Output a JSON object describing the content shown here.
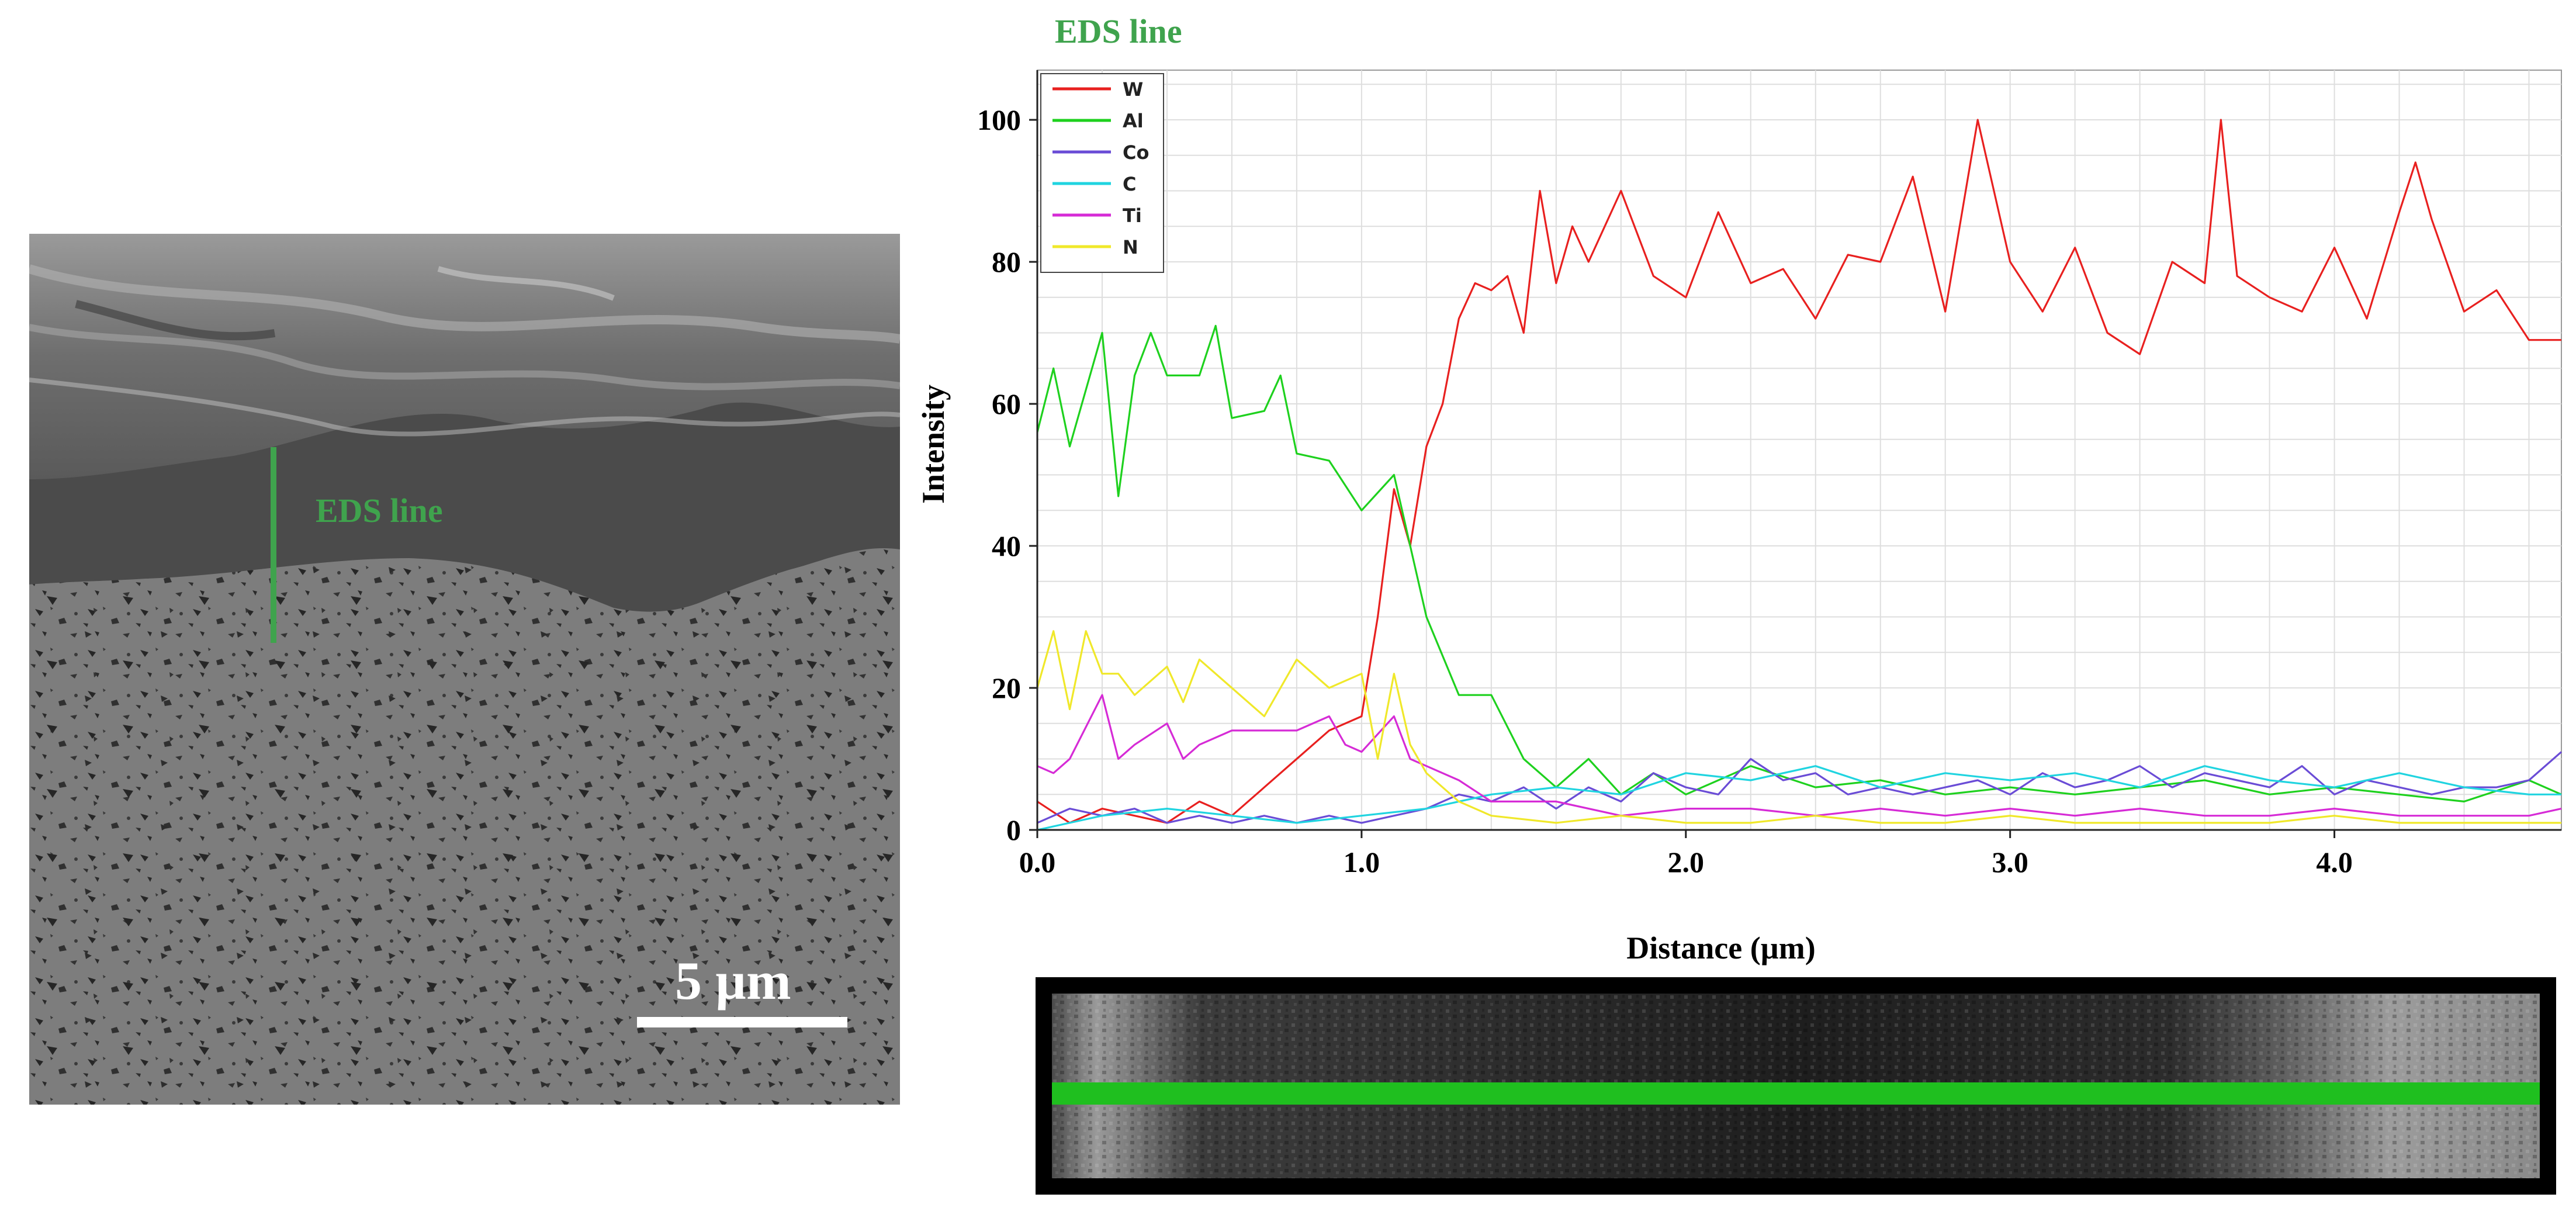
{
  "sem": {
    "eds_label": "EDS line",
    "scale_label": "5 µm",
    "colors": {
      "line": "#3fa34d",
      "coating": "#4a4a4a",
      "substrate": "#7a7a7a",
      "top": "#8e8e8e"
    }
  },
  "chart_title": "EDS line",
  "chart_data": {
    "type": "line",
    "xlabel": "Distance (µm)",
    "ylabel": "Intensity",
    "xlim": [
      0,
      4.7
    ],
    "ylim": [
      0,
      107
    ],
    "xticks": [
      "0.0",
      "1.0",
      "2.0",
      "3.0",
      "4.0"
    ],
    "xtick_values": [
      0,
      1,
      2,
      3,
      4
    ],
    "yticks": [
      "0",
      "20",
      "40",
      "60",
      "80",
      "100"
    ],
    "ytick_values": [
      0,
      20,
      40,
      60,
      80,
      100
    ],
    "grid": true,
    "legend_position": "top-left",
    "series": [
      {
        "name": "W",
        "color": "#e8201f",
        "x": [
          0,
          0.1,
          0.2,
          0.3,
          0.4,
          0.5,
          0.6,
          0.7,
          0.8,
          0.9,
          1.0,
          1.05,
          1.1,
          1.15,
          1.2,
          1.25,
          1.3,
          1.35,
          1.4,
          1.45,
          1.5,
          1.55,
          1.6,
          1.65,
          1.7,
          1.8,
          1.9,
          2.0,
          2.1,
          2.2,
          2.3,
          2.4,
          2.5,
          2.6,
          2.7,
          2.8,
          2.9,
          3.0,
          3.1,
          3.2,
          3.3,
          3.4,
          3.5,
          3.6,
          3.65,
          3.7,
          3.8,
          3.9,
          4.0,
          4.1,
          4.2,
          4.25,
          4.3,
          4.4,
          4.5,
          4.6,
          4.7
        ],
        "y": [
          4,
          1,
          3,
          2,
          1,
          4,
          2,
          6,
          10,
          14,
          16,
          30,
          48,
          40,
          54,
          60,
          72,
          77,
          76,
          78,
          70,
          90,
          77,
          85,
          80,
          90,
          78,
          75,
          87,
          77,
          79,
          72,
          81,
          80,
          92,
          73,
          100,
          80,
          73,
          82,
          70,
          67,
          80,
          77,
          100,
          78,
          75,
          73,
          82,
          72,
          87,
          94,
          86,
          73,
          76,
          69,
          69
        ]
      },
      {
        "name": "Al",
        "color": "#1ed11e",
        "x": [
          0,
          0.05,
          0.1,
          0.2,
          0.25,
          0.3,
          0.35,
          0.4,
          0.5,
          0.55,
          0.6,
          0.7,
          0.75,
          0.8,
          0.9,
          1.0,
          1.1,
          1.15,
          1.2,
          1.3,
          1.4,
          1.5,
          1.6,
          1.7,
          1.8,
          1.9,
          2.0,
          2.2,
          2.4,
          2.6,
          2.8,
          3.0,
          3.2,
          3.4,
          3.6,
          3.8,
          4.0,
          4.2,
          4.4,
          4.6,
          4.7
        ],
        "y": [
          56,
          65,
          54,
          70,
          47,
          64,
          70,
          64,
          64,
          71,
          58,
          59,
          64,
          53,
          52,
          45,
          50,
          40,
          30,
          19,
          19,
          10,
          6,
          10,
          5,
          8,
          5,
          9,
          6,
          7,
          5,
          6,
          5,
          6,
          7,
          5,
          6,
          5,
          4,
          7,
          5
        ]
      },
      {
        "name": "Co",
        "color": "#6a4cd6",
        "x": [
          0,
          0.1,
          0.2,
          0.3,
          0.4,
          0.5,
          0.6,
          0.7,
          0.8,
          0.9,
          1.0,
          1.1,
          1.2,
          1.3,
          1.4,
          1.5,
          1.6,
          1.7,
          1.8,
          1.9,
          2.0,
          2.1,
          2.2,
          2.3,
          2.4,
          2.5,
          2.6,
          2.7,
          2.8,
          2.9,
          3.0,
          3.1,
          3.2,
          3.3,
          3.4,
          3.5,
          3.6,
          3.7,
          3.8,
          3.9,
          4.0,
          4.1,
          4.2,
          4.3,
          4.4,
          4.5,
          4.6,
          4.7
        ],
        "y": [
          1,
          3,
          2,
          3,
          1,
          2,
          1,
          2,
          1,
          2,
          1,
          2,
          3,
          5,
          4,
          6,
          3,
          6,
          4,
          8,
          6,
          5,
          10,
          7,
          8,
          5,
          6,
          5,
          6,
          7,
          5,
          8,
          6,
          7,
          9,
          6,
          8,
          7,
          6,
          9,
          5,
          7,
          6,
          5,
          6,
          6,
          7,
          11
        ]
      },
      {
        "name": "C",
        "color": "#20d4e0",
        "x": [
          0,
          0.2,
          0.4,
          0.6,
          0.8,
          1.0,
          1.2,
          1.4,
          1.6,
          1.8,
          2.0,
          2.2,
          2.4,
          2.6,
          2.8,
          3.0,
          3.2,
          3.4,
          3.6,
          3.8,
          4.0,
          4.2,
          4.4,
          4.6,
          4.7
        ],
        "y": [
          0,
          2,
          3,
          2,
          1,
          2,
          3,
          5,
          6,
          5,
          8,
          7,
          9,
          6,
          8,
          7,
          8,
          6,
          9,
          7,
          6,
          8,
          6,
          5,
          5
        ]
      },
      {
        "name": "Ti",
        "color": "#d62bd6",
        "x": [
          0,
          0.05,
          0.1,
          0.2,
          0.25,
          0.3,
          0.4,
          0.45,
          0.5,
          0.6,
          0.7,
          0.8,
          0.9,
          0.95,
          1.0,
          1.1,
          1.15,
          1.2,
          1.3,
          1.4,
          1.6,
          1.8,
          2.0,
          2.2,
          2.4,
          2.6,
          2.8,
          3.0,
          3.2,
          3.4,
          3.6,
          3.8,
          4.0,
          4.2,
          4.4,
          4.6,
          4.7
        ],
        "y": [
          9,
          8,
          10,
          19,
          10,
          12,
          15,
          10,
          12,
          14,
          14,
          14,
          16,
          12,
          11,
          16,
          10,
          9,
          7,
          4,
          4,
          2,
          3,
          3,
          2,
          3,
          2,
          3,
          2,
          3,
          2,
          2,
          3,
          2,
          2,
          2,
          3
        ]
      },
      {
        "name": "N",
        "color": "#f0e82a",
        "x": [
          0,
          0.05,
          0.1,
          0.15,
          0.2,
          0.25,
          0.3,
          0.4,
          0.45,
          0.5,
          0.6,
          0.7,
          0.8,
          0.9,
          1.0,
          1.05,
          1.1,
          1.15,
          1.2,
          1.3,
          1.4,
          1.6,
          1.8,
          2.0,
          2.2,
          2.4,
          2.6,
          2.8,
          3.0,
          3.2,
          3.4,
          3.6,
          3.8,
          4.0,
          4.2,
          4.4,
          4.6,
          4.7
        ],
        "y": [
          20,
          28,
          17,
          28,
          22,
          22,
          19,
          23,
          18,
          24,
          20,
          16,
          24,
          20,
          22,
          10,
          22,
          12,
          8,
          4,
          2,
          1,
          2,
          1,
          1,
          2,
          1,
          1,
          2,
          1,
          1,
          1,
          1,
          2,
          1,
          1,
          1,
          1
        ]
      }
    ]
  },
  "strip": {
    "line_color": "#1fbf1f"
  }
}
